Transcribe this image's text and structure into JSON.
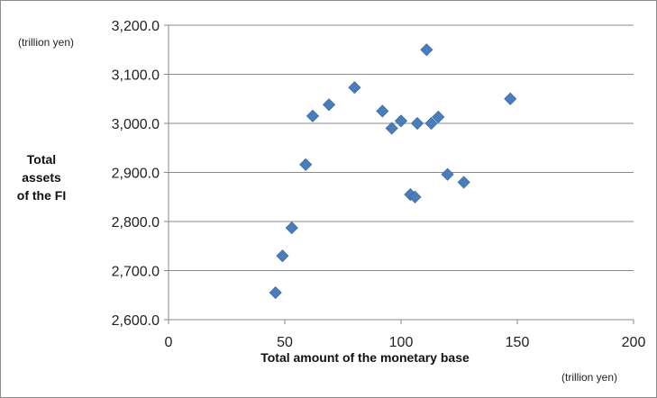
{
  "chart_data": {
    "type": "scatter",
    "title": "",
    "xlabel": "Total amount of the monetary base",
    "x_unit": "(trillion yen)",
    "ylabel_lines": [
      "Total",
      "assets",
      "of the FI"
    ],
    "y_unit": "(trillion yen)",
    "xlim": [
      0,
      200
    ],
    "ylim": [
      2600,
      3200
    ],
    "x_ticks": [
      0,
      50,
      100,
      150,
      200
    ],
    "x_tick_labels": [
      "0",
      "50",
      "100",
      "150",
      "200"
    ],
    "y_ticks": [
      2600,
      2700,
      2800,
      2900,
      3000,
      3100,
      3200
    ],
    "y_tick_labels": [
      "2,600.0",
      "2,700.0",
      "2,800.0",
      "2,900.0",
      "3,000.0",
      "3,100.0",
      "3,200.0"
    ],
    "grid": "horizontal",
    "marker": "diamond",
    "marker_color": "#4a7ebb",
    "points": [
      {
        "x": 46,
        "y": 2655
      },
      {
        "x": 49,
        "y": 2730
      },
      {
        "x": 53,
        "y": 2787
      },
      {
        "x": 59,
        "y": 2916
      },
      {
        "x": 62,
        "y": 3015
      },
      {
        "x": 69,
        "y": 3038
      },
      {
        "x": 80,
        "y": 3073
      },
      {
        "x": 92,
        "y": 3025
      },
      {
        "x": 96,
        "y": 2990
      },
      {
        "x": 100,
        "y": 3005
      },
      {
        "x": 104,
        "y": 2855
      },
      {
        "x": 106,
        "y": 2850
      },
      {
        "x": 107,
        "y": 3000
      },
      {
        "x": 111,
        "y": 3150
      },
      {
        "x": 113,
        "y": 3000
      },
      {
        "x": 116,
        "y": 3013
      },
      {
        "x": 120,
        "y": 2896
      },
      {
        "x": 127,
        "y": 2880
      },
      {
        "x": 147,
        "y": 3050
      }
    ]
  }
}
